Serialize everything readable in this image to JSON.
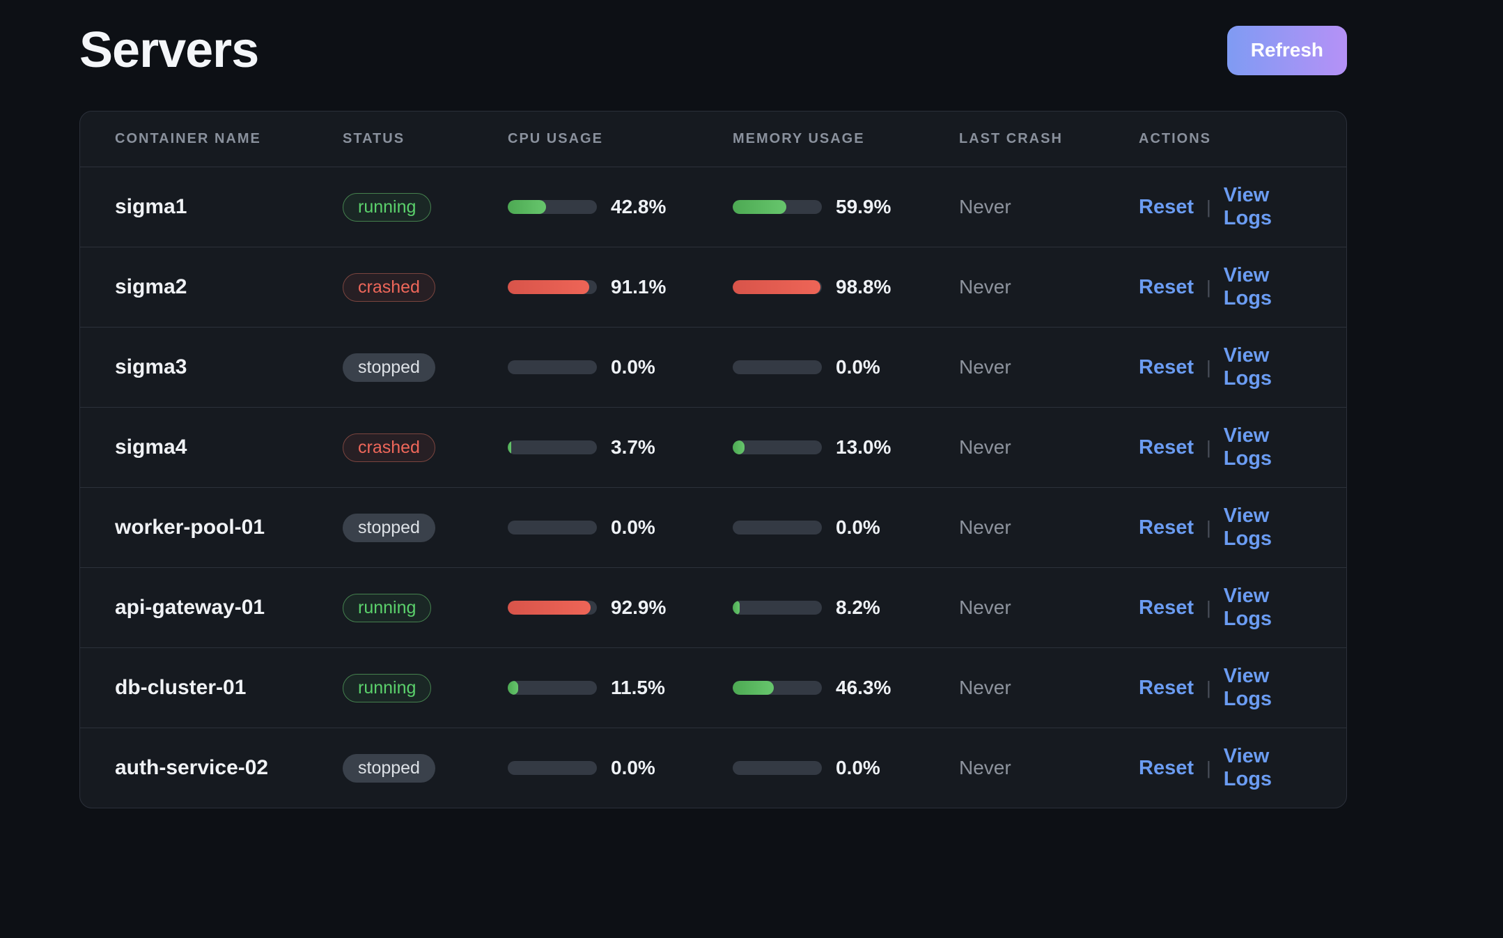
{
  "page": {
    "title": "Servers"
  },
  "toolbar": {
    "refresh_label": "Refresh"
  },
  "colors": {
    "accent_from": "#7f9bf3",
    "accent_to": "#b591f6",
    "link_blue": "#6b9cf2",
    "bar_green": "#4da953",
    "bar_red": "#d8544a",
    "status_running": "#5bd26c",
    "status_crashed": "#ee675a",
    "status_stopped": "#dde1e6"
  },
  "table": {
    "columns": [
      "CONTAINER NAME",
      "STATUS",
      "CPU USAGE",
      "MEMORY USAGE",
      "LAST CRASH",
      "ACTIONS"
    ],
    "actions": {
      "reset": "Reset",
      "separator": "|",
      "view_logs": "View Logs"
    },
    "rows": [
      {
        "name": "sigma1",
        "status": "running",
        "cpu": {
          "label": "42.8%",
          "pct": 42.8,
          "level": "green"
        },
        "memory": {
          "label": "59.9%",
          "pct": 59.9,
          "level": "green"
        },
        "last_crash": "Never"
      },
      {
        "name": "sigma2",
        "status": "crashed",
        "cpu": {
          "label": "91.1%",
          "pct": 91.1,
          "level": "red"
        },
        "memory": {
          "label": "98.8%",
          "pct": 98.8,
          "level": "red"
        },
        "last_crash": "Never"
      },
      {
        "name": "sigma3",
        "status": "stopped",
        "cpu": {
          "label": "0.0%",
          "pct": 0,
          "level": "empty"
        },
        "memory": {
          "label": "0.0%",
          "pct": 0,
          "level": "empty"
        },
        "last_crash": "Never"
      },
      {
        "name": "sigma4",
        "status": "crashed",
        "cpu": {
          "label": "3.7%",
          "pct": 3.7,
          "level": "green"
        },
        "memory": {
          "label": "13.0%",
          "pct": 13.0,
          "level": "green"
        },
        "last_crash": "Never"
      },
      {
        "name": "worker-pool-01",
        "status": "stopped",
        "cpu": {
          "label": "0.0%",
          "pct": 0,
          "level": "empty"
        },
        "memory": {
          "label": "0.0%",
          "pct": 0,
          "level": "empty"
        },
        "last_crash": "Never"
      },
      {
        "name": "api-gateway-01",
        "status": "running",
        "cpu": {
          "label": "92.9%",
          "pct": 92.9,
          "level": "red"
        },
        "memory": {
          "label": "8.2%",
          "pct": 8.2,
          "level": "green"
        },
        "last_crash": "Never"
      },
      {
        "name": "db-cluster-01",
        "status": "running",
        "cpu": {
          "label": "11.5%",
          "pct": 11.5,
          "level": "green"
        },
        "memory": {
          "label": "46.3%",
          "pct": 46.3,
          "level": "green"
        },
        "last_crash": "Never"
      },
      {
        "name": "auth-service-02",
        "status": "stopped",
        "cpu": {
          "label": "0.0%",
          "pct": 0,
          "level": "empty"
        },
        "memory": {
          "label": "0.0%",
          "pct": 0,
          "level": "empty"
        },
        "last_crash": "Never"
      }
    ]
  }
}
